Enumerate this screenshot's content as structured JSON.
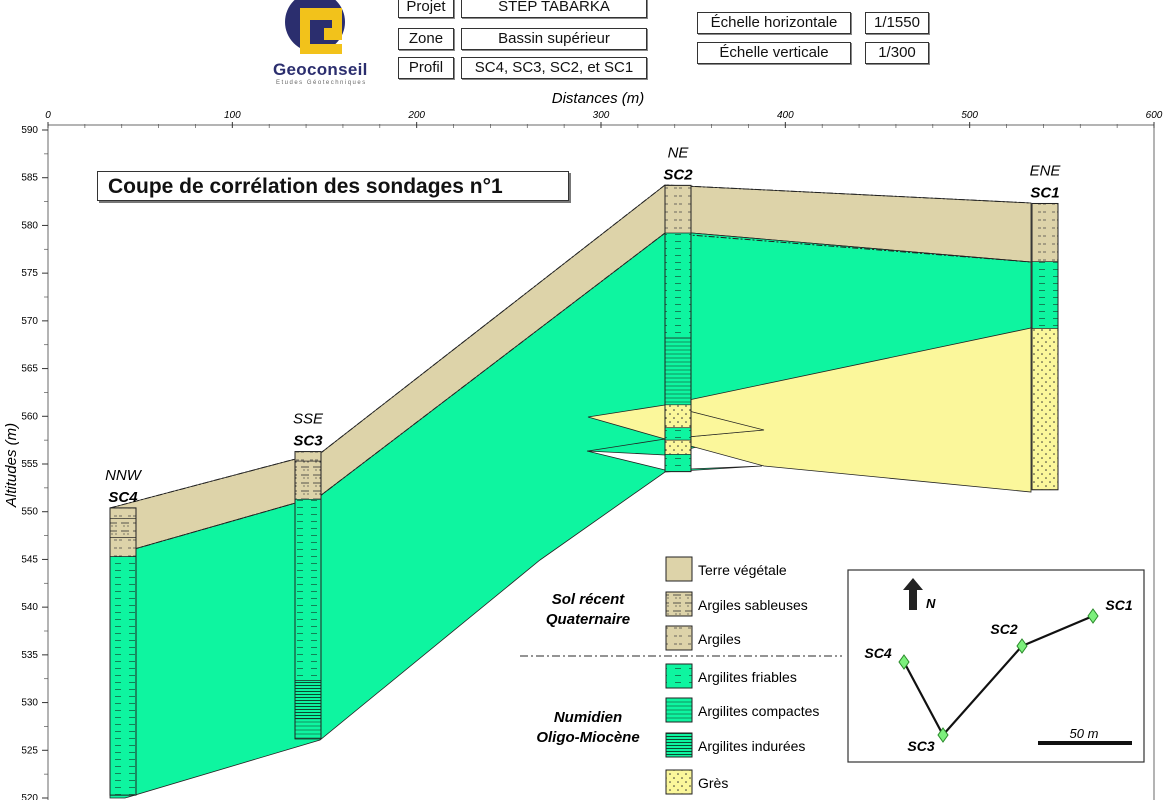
{
  "header": {
    "logo": {
      "name": "Geoconseil",
      "tagline": "Etudes Géotechniques"
    },
    "rows": [
      {
        "label": "Projet",
        "value": "STEP TABARKA"
      },
      {
        "label": "Zone",
        "value": "Bassin supérieur"
      },
      {
        "label": "Profil",
        "value": "SC4, SC3, SC2, et SC1"
      }
    ],
    "scales": [
      {
        "label": "Échelle horizontale",
        "value": "1/1550"
      },
      {
        "label": "Échelle verticale",
        "value": "1/300"
      }
    ]
  },
  "section_title": "Coupe de corrélation des sondages n°1",
  "axes": {
    "x_label": "Distances (m)",
    "y_label": "Altitudes (m)",
    "x_range": [
      0,
      600
    ],
    "y_range": [
      520,
      590
    ],
    "x_ticks": [
      0,
      100,
      200,
      300,
      400,
      500,
      600
    ],
    "y_ticks": [
      590,
      585,
      580,
      575,
      570,
      565,
      560,
      555,
      550,
      545,
      540,
      535,
      530,
      525,
      520
    ]
  },
  "boreholes": [
    {
      "id": "SC4",
      "orientation": "NNW",
      "distance": 40,
      "top": 550.4,
      "bottom": 520.3
    },
    {
      "id": "SC3",
      "orientation": "SSE",
      "distance": 140,
      "top": 556.3,
      "bottom": 526.2
    },
    {
      "id": "SC2",
      "orientation": "NE",
      "distance": 335,
      "top": 584.2,
      "bottom": 554.2
    },
    {
      "id": "SC1",
      "orientation": "ENE",
      "distance": 535,
      "top": 582.3,
      "bottom": 552.3
    }
  ],
  "legend": {
    "groups": [
      {
        "name": "Sol récent\nQuaternaire",
        "items": [
          "Terre végétale",
          "Argiles sableuses",
          "Argiles"
        ]
      },
      {
        "name": "Numidien\nOligo-Miocène",
        "items": [
          "Argilites friables",
          "Argilites compactes",
          "Argilites indurées",
          "Grès"
        ]
      }
    ]
  },
  "location_map": {
    "north_label": "N",
    "scale_label": "50 m",
    "points": [
      "SC4",
      "SC3",
      "SC2",
      "SC1"
    ]
  },
  "colors": {
    "topsoil": "#ddd3a9",
    "argilites": "#0ef5a0",
    "gres": "#fbf79b",
    "logo_blue": "#2b2e6e",
    "logo_yellow": "#f2c21b"
  }
}
